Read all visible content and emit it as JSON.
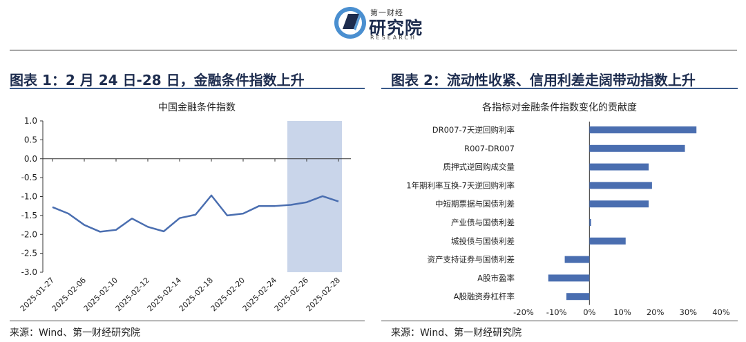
{
  "header": {
    "logo_small": "第一财经",
    "logo_big": "研究院",
    "logo_en": "RESEARCH"
  },
  "left_panel": {
    "title": "图表 1：2 月 24 日-28 日，金融条件指数上升",
    "chart_title": "中国金融条件指数",
    "source": "来源：Wind、第一财经研究院"
  },
  "right_panel": {
    "title": "图表 2：流动性收紧、信用利差走阔带动指数上升",
    "chart_title": "各指标对金融条件指数变化的贡献度",
    "source": "来源：Wind、第一财经研究院"
  },
  "chart_data": [
    {
      "type": "line",
      "title": "中国金融条件指数",
      "xlabel": "",
      "ylabel": "",
      "x": [
        "2025-01-27",
        "2025-02-05",
        "2025-02-06",
        "2025-02-07",
        "2025-02-10",
        "2025-02-11",
        "2025-02-12",
        "2025-02-13",
        "2025-02-14",
        "2025-02-17",
        "2025-02-18",
        "2025-02-19",
        "2025-02-20",
        "2025-02-21",
        "2025-02-24",
        "2025-02-25",
        "2025-02-26",
        "2025-02-27",
        "2025-02-28"
      ],
      "tick_labels": [
        "2025-01-27",
        "2025-02-06",
        "2025-02-10",
        "2025-02-12",
        "2025-02-14",
        "2025-02-18",
        "2025-02-20",
        "2025-02-24",
        "2025-02-26",
        "2025-02-28"
      ],
      "series": [
        {
          "values": [
            -1.28,
            -1.45,
            -1.75,
            -1.93,
            -1.88,
            -1.58,
            -1.8,
            -1.92,
            -1.57,
            -1.48,
            -0.97,
            -1.5,
            -1.45,
            -1.25,
            -1.25,
            -1.22,
            -1.15,
            -0.99,
            -1.13
          ]
        }
      ],
      "ylim": [
        -3.0,
        1.0
      ],
      "yticks": [
        "1.0",
        "0.5",
        "0.0",
        "-0.5",
        "-1.0",
        "-1.5",
        "-2.0",
        "-2.5",
        "-3.0"
      ],
      "highlight": {
        "from": "2025-02-24",
        "to": "2025-02-28",
        "color": "#c9d5ea"
      },
      "line_color": "#4a6eb0",
      "grid": false
    },
    {
      "type": "bar",
      "orientation": "horizontal",
      "title": "各指标对金融条件指数变化的贡献度",
      "categories": [
        "DR007-7天逆回购利率",
        "R007-DR007",
        "质押式逆回购成交量",
        "1年期利率互换-7天逆回购利率",
        "中短期票据与国债利差",
        "产业债与国债利差",
        "城投债与国债利差",
        "资产支持证券与国债利差",
        "A股市盈率",
        "A股融资券杠杆率"
      ],
      "values": [
        32.5,
        29,
        18,
        19,
        18,
        0.5,
        11,
        -7.5,
        -12.5,
        -7
      ],
      "value_unit": "%",
      "xlim": [
        -20,
        40
      ],
      "xticks": [
        "-20%",
        "-10%",
        "0%",
        "10%",
        "20%",
        "30%",
        "40%"
      ],
      "bar_color": "#4a6eb0",
      "grid": false
    }
  ]
}
